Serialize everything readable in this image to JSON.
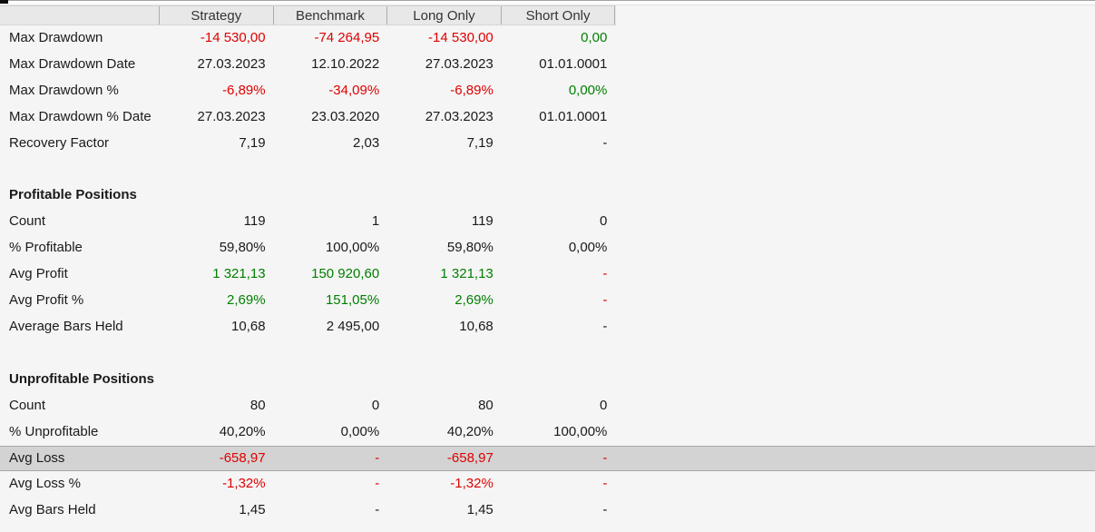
{
  "palette": {
    "background": "#f5f5f5",
    "header_bg": "#e8e8e8",
    "header_separator": "#adadad",
    "selected_bg": "#d3d3d3",
    "selected_border": "#a9a9a9",
    "red": "#e00000",
    "green": "#008000",
    "text": "#1a1a1a"
  },
  "columns": [
    "Strategy",
    "Benchmark",
    "Long Only",
    "Short Only"
  ],
  "sections": {
    "profitable": "Profitable Positions",
    "unprofitable": "Unprofitable Positions"
  },
  "rows": [
    {
      "type": "data",
      "label": "Max Drawdown",
      "values": [
        "-14 530,00",
        "-74 264,95",
        "-14 530,00",
        "0,00"
      ],
      "colors": [
        "red",
        "red",
        "red",
        "green"
      ]
    },
    {
      "type": "data",
      "label": "Max Drawdown Date",
      "values": [
        "27.03.2023",
        "12.10.2022",
        "27.03.2023",
        "01.01.0001"
      ],
      "colors": [
        "text",
        "text",
        "text",
        "text"
      ]
    },
    {
      "type": "data",
      "label": "Max Drawdown %",
      "values": [
        "-6,89%",
        "-34,09%",
        "-6,89%",
        "0,00%"
      ],
      "colors": [
        "red",
        "red",
        "red",
        "green"
      ]
    },
    {
      "type": "data",
      "label": "Max Drawdown % Date",
      "values": [
        "27.03.2023",
        "23.03.2020",
        "27.03.2023",
        "01.01.0001"
      ],
      "colors": [
        "text",
        "text",
        "text",
        "text"
      ]
    },
    {
      "type": "data",
      "label": "Recovery Factor",
      "values": [
        "7,19",
        "2,03",
        "7,19",
        "-"
      ],
      "colors": [
        "text",
        "text",
        "text",
        "text"
      ]
    },
    {
      "type": "blank"
    },
    {
      "type": "section",
      "label": "Profitable Positions"
    },
    {
      "type": "data",
      "label": "Count",
      "values": [
        "119",
        "1",
        "119",
        "0"
      ],
      "colors": [
        "text",
        "text",
        "text",
        "text"
      ]
    },
    {
      "type": "data",
      "label": "% Profitable",
      "values": [
        "59,80%",
        "100,00%",
        "59,80%",
        "0,00%"
      ],
      "colors": [
        "text",
        "text",
        "text",
        "text"
      ]
    },
    {
      "type": "data",
      "label": "Avg Profit",
      "values": [
        "1 321,13",
        "150 920,60",
        "1 321,13",
        "-"
      ],
      "colors": [
        "green",
        "green",
        "green",
        "red"
      ]
    },
    {
      "type": "data",
      "label": "Avg Profit %",
      "values": [
        "2,69%",
        "151,05%",
        "2,69%",
        "-"
      ],
      "colors": [
        "green",
        "green",
        "green",
        "red"
      ]
    },
    {
      "type": "data",
      "label": "Average Bars Held",
      "values": [
        "10,68",
        "2 495,00",
        "10,68",
        "-"
      ],
      "colors": [
        "text",
        "text",
        "text",
        "text"
      ]
    },
    {
      "type": "blank"
    },
    {
      "type": "section",
      "label": "Unprofitable Positions"
    },
    {
      "type": "data",
      "label": "Count",
      "values": [
        "80",
        "0",
        "80",
        "0"
      ],
      "colors": [
        "text",
        "text",
        "text",
        "text"
      ]
    },
    {
      "type": "data",
      "label": "% Unprofitable",
      "values": [
        "40,20%",
        "0,00%",
        "40,20%",
        "100,00%"
      ],
      "colors": [
        "text",
        "text",
        "text",
        "text"
      ]
    },
    {
      "type": "data",
      "label": "Avg Loss",
      "values": [
        "-658,97",
        "-",
        "-658,97",
        "-"
      ],
      "colors": [
        "red",
        "red",
        "red",
        "red"
      ],
      "selected": true
    },
    {
      "type": "data",
      "label": "Avg Loss %",
      "values": [
        "-1,32%",
        "-",
        "-1,32%",
        "-"
      ],
      "colors": [
        "red",
        "red",
        "red",
        "red"
      ]
    },
    {
      "type": "data",
      "label": "Avg Bars Held",
      "values": [
        "1,45",
        "-",
        "1,45",
        "-"
      ],
      "colors": [
        "text",
        "text",
        "text",
        "text"
      ]
    }
  ]
}
